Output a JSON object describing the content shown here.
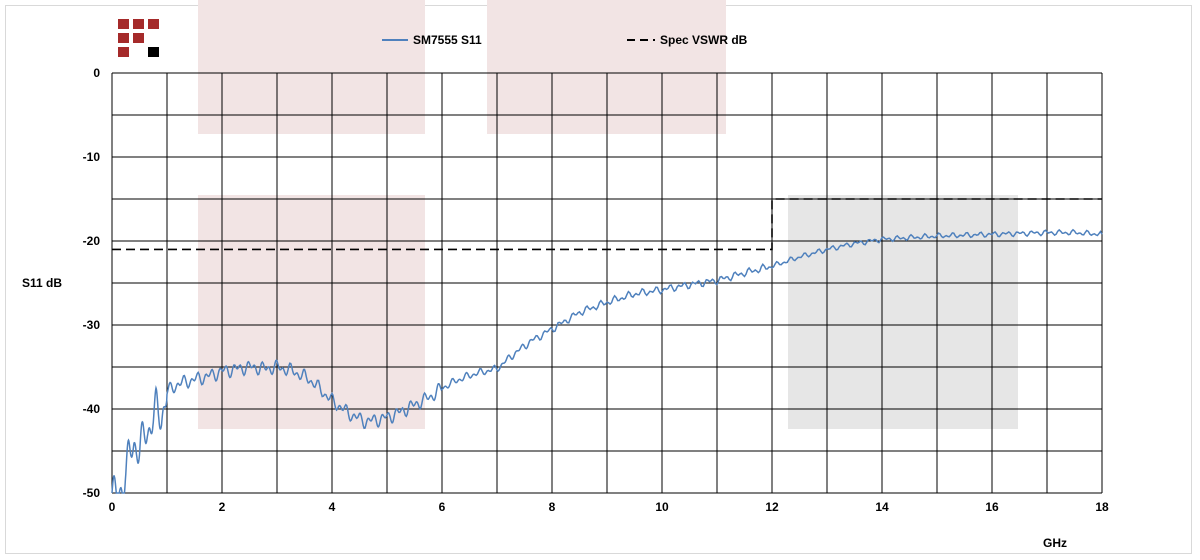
{
  "chart_data": {
    "type": "line",
    "xlabel": "GHz",
    "ylabel": "S11 dB",
    "xlim": [
      0,
      18
    ],
    "ylim": [
      -50,
      0
    ],
    "x_ticks": [
      0,
      2,
      4,
      6,
      8,
      10,
      12,
      14,
      16,
      18
    ],
    "y_ticks": [
      0,
      -10,
      -20,
      -30,
      -40,
      -50
    ],
    "grid": true,
    "legend_position": "top-center",
    "series": [
      {
        "name": "SM7555 S11",
        "style": "solid",
        "color": "#4f81bd",
        "x": [
          0,
          0.1,
          0.2,
          0.3,
          0.4,
          0.5,
          0.6,
          0.7,
          0.8,
          0.9,
          1.0,
          1.2,
          1.5,
          1.8,
          2.0,
          2.2,
          2.5,
          2.8,
          3.0,
          3.3,
          3.6,
          4.0,
          4.3,
          4.6,
          4.8,
          5.0,
          5.2,
          5.5,
          5.8,
          6.0,
          6.3,
          6.6,
          7.0,
          7.3,
          7.6,
          8.0,
          8.5,
          9.0,
          9.5,
          10.0,
          10.5,
          11.0,
          11.5,
          12.0,
          12.5,
          13.0,
          13.5,
          14.0,
          14.5,
          15.0,
          15.5,
          16.0,
          16.5,
          17.0,
          17.5,
          18.0
        ],
        "values": [
          -50,
          -50.5,
          -49,
          -46,
          -44,
          -45,
          -43,
          -42,
          -40,
          -41,
          -38,
          -37,
          -36.5,
          -36,
          -35.5,
          -35.3,
          -35,
          -35.2,
          -35,
          -35.5,
          -36.5,
          -39,
          -40.5,
          -41.5,
          -41.3,
          -41,
          -40.5,
          -39.5,
          -38.5,
          -37.5,
          -36.5,
          -35.8,
          -35.2,
          -33.5,
          -32,
          -30.5,
          -28.5,
          -27.3,
          -26.3,
          -25.8,
          -25.2,
          -24.7,
          -23.8,
          -23,
          -21.9,
          -21,
          -20.3,
          -19.8,
          -19.6,
          -19.4,
          -19.3,
          -19.2,
          -19.1,
          -19.0,
          -19.0,
          -19.2
        ]
      },
      {
        "name": "Spec VSWR dB",
        "style": "dashed",
        "color": "#000000",
        "x": [
          0,
          12,
          12,
          18
        ],
        "values": [
          -21,
          -21,
          -15,
          -15
        ]
      }
    ]
  },
  "legend": {
    "items": [
      {
        "label": "SM7555 S11",
        "color": "#4f81bd",
        "style": "solid"
      },
      {
        "label": "Spec VSWR dB",
        "color": "#000000",
        "style": "dashed"
      }
    ]
  },
  "background_colors": {
    "pink_band": "#f2e4e4",
    "grey_band": "#e6e6e6",
    "logo_red": "#a52a2a",
    "logo_black": "#000000"
  }
}
